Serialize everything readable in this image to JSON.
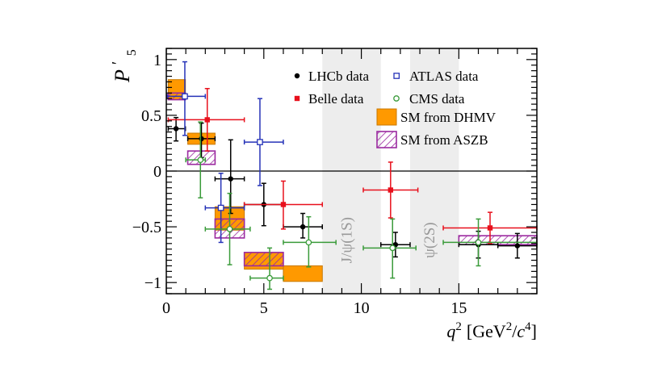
{
  "chart_data": {
    "type": "scatter",
    "ylabel_main": "P",
    "ylabel_sup": "′",
    "ylabel_sub": "5",
    "xlabel_var": "q",
    "xlabel_pow": "2",
    "xlabel_unit_open": "[GeV",
    "xlabel_unit_mid": "/",
    "xlabel_unit_c": "c",
    "xlabel_unit_pow4": "4",
    "xlabel_unit_close": "]",
    "xlim": [
      0,
      19
    ],
    "ylim": [
      -1.1,
      1.1
    ],
    "x_ticks": [
      "0",
      "5",
      "10",
      "15"
    ],
    "y_ticks": [
      "−1",
      "−0.5",
      "0",
      "0.5",
      "1"
    ],
    "vetoed_regions": [
      {
        "label": "J/ψ(1S)",
        "x": [
          8.0,
          11.0
        ]
      },
      {
        "label": "ψ(2S)",
        "x": [
          12.5,
          15.0
        ]
      }
    ],
    "legend": {
      "placement": "top-right",
      "entries": [
        {
          "key": "lhcb",
          "label": "LHCb data"
        },
        {
          "key": "atlas",
          "label": "ATLAS data"
        },
        {
          "key": "belle",
          "label": "Belle data"
        },
        {
          "key": "cms",
          "label": "CMS data"
        },
        {
          "key": "dhmv",
          "label": "SM from DHMV"
        },
        {
          "key": "aszb",
          "label": "SM from ASZB"
        }
      ]
    },
    "colors": {
      "lhcb": "#000000",
      "belle": "#e8101c",
      "atlas": "#2633b8",
      "cms": "#3a9b3a",
      "dhmv_fill": "#ff9900",
      "dhmv_edge": "#c87800",
      "aszb": "#9b2aa0",
      "veto": "#ededed"
    },
    "series": [
      {
        "name": "LHCb data",
        "key": "lhcb",
        "points": [
          {
            "x": 0.5,
            "xlo": 0.1,
            "xhi": 0.98,
            "y": 0.38,
            "ylo": 0.27,
            "yhi": 0.48
          },
          {
            "x": 1.8,
            "xlo": 1.1,
            "xhi": 2.5,
            "y": 0.29,
            "ylo": 0.12,
            "yhi": 0.43
          },
          {
            "x": 3.3,
            "xlo": 2.5,
            "xhi": 4.0,
            "y": -0.07,
            "ylo": -0.38,
            "yhi": 0.28
          },
          {
            "x": 5.0,
            "xlo": 4.0,
            "xhi": 6.0,
            "y": -0.3,
            "ylo": -0.49,
            "yhi": -0.11
          },
          {
            "x": 7.0,
            "xlo": 6.0,
            "xhi": 8.0,
            "y": -0.5,
            "ylo": -0.6,
            "yhi": -0.38
          },
          {
            "x": 11.75,
            "xlo": 11.0,
            "xhi": 12.5,
            "y": -0.66,
            "ylo": -0.77,
            "yhi": -0.55
          },
          {
            "x": 16.0,
            "xlo": 15.0,
            "xhi": 17.0,
            "y": -0.66,
            "ylo": -0.78,
            "yhi": -0.54
          },
          {
            "x": 18.0,
            "xlo": 17.0,
            "xhi": 19.0,
            "y": -0.67,
            "ylo": -0.78,
            "yhi": -0.56
          }
        ]
      },
      {
        "name": "Belle data",
        "key": "belle",
        "points": [
          {
            "x": 2.1,
            "xlo": 0.1,
            "xhi": 4.0,
            "y": 0.46,
            "ylo": 0.18,
            "yhi": 0.74
          },
          {
            "x": 6.0,
            "xlo": 4.0,
            "xhi": 8.0,
            "y": -0.3,
            "ylo": -0.52,
            "yhi": -0.09
          },
          {
            "x": 11.5,
            "xlo": 10.1,
            "xhi": 12.9,
            "y": -0.17,
            "ylo": -0.42,
            "yhi": 0.08
          },
          {
            "x": 16.6,
            "xlo": 14.2,
            "xhi": 19.0,
            "y": -0.51,
            "ylo": -0.65,
            "yhi": -0.37
          }
        ]
      },
      {
        "name": "ATLAS data",
        "key": "atlas",
        "points": [
          {
            "x": 0.95,
            "xlo": 0.04,
            "xhi": 2.0,
            "y": 0.67,
            "ylo": 0.32,
            "yhi": 0.98
          },
          {
            "x": 2.8,
            "xlo": 2.0,
            "xhi": 4.0,
            "y": -0.33,
            "ylo": -0.64,
            "yhi": -0.02
          },
          {
            "x": 4.8,
            "xlo": 4.0,
            "xhi": 6.0,
            "y": 0.26,
            "ylo": -0.13,
            "yhi": 0.65
          }
        ]
      },
      {
        "name": "CMS data",
        "key": "cms",
        "points": [
          {
            "x": 1.75,
            "xlo": 1.0,
            "xhi": 2.0,
            "y": 0.1,
            "ylo": -0.24,
            "yhi": 0.44
          },
          {
            "x": 3.25,
            "xlo": 2.0,
            "xhi": 4.3,
            "y": -0.52,
            "ylo": -0.84,
            "yhi": -0.2
          },
          {
            "x": 5.3,
            "xlo": 4.3,
            "xhi": 6.0,
            "y": -0.96,
            "ylo": -1.06,
            "yhi": -0.69
          },
          {
            "x": 7.3,
            "xlo": 6.0,
            "xhi": 8.7,
            "y": -0.64,
            "ylo": -0.86,
            "yhi": -0.41
          },
          {
            "x": 11.6,
            "xlo": 10.1,
            "xhi": 12.8,
            "y": -0.69,
            "ylo": -0.96,
            "yhi": -0.43
          },
          {
            "x": 16.0,
            "xlo": 14.2,
            "xhi": 19.0,
            "y": -0.64,
            "ylo": -0.85,
            "yhi": -0.43
          }
        ]
      }
    ],
    "sm_dhmv": [
      {
        "x": [
          0.1,
          0.98
        ],
        "y": [
          0.64,
          0.82
        ]
      },
      {
        "x": [
          1.1,
          2.5
        ],
        "y": [
          0.24,
          0.34
        ]
      },
      {
        "x": [
          2.5,
          4.0
        ],
        "y": [
          -0.53,
          -0.32
        ]
      },
      {
        "x": [
          4.0,
          6.0
        ],
        "y": [
          -0.88,
          -0.73
        ]
      },
      {
        "x": [
          6.0,
          8.0
        ],
        "y": [
          -0.99,
          -0.85
        ]
      }
    ],
    "sm_aszb": [
      {
        "x": [
          0.1,
          0.98
        ],
        "y": [
          0.64,
          0.7
        ]
      },
      {
        "x": [
          1.1,
          2.5
        ],
        "y": [
          0.06,
          0.18
        ]
      },
      {
        "x": [
          2.5,
          4.0
        ],
        "y": [
          -0.6,
          -0.43
        ]
      },
      {
        "x": [
          4.0,
          6.0
        ],
        "y": [
          -0.85,
          -0.73
        ]
      },
      {
        "x": [
          15.0,
          19.0
        ],
        "y": [
          -0.66,
          -0.58
        ]
      }
    ]
  }
}
